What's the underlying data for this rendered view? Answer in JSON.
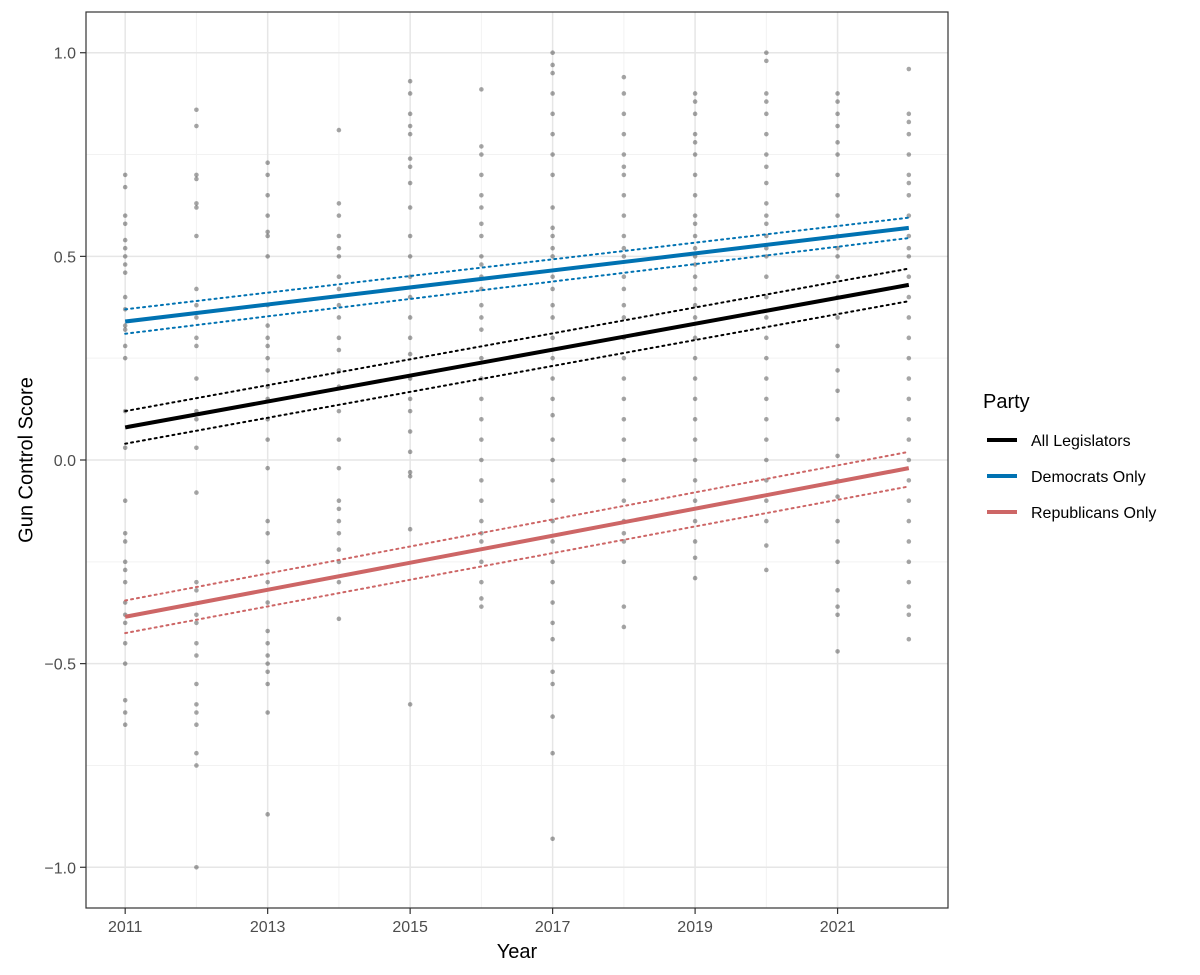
{
  "chart_data": {
    "type": "scatter",
    "xlabel": "Year",
    "ylabel": "Gun Control Score",
    "xlim": [
      2010.45,
      2022.55
    ],
    "ylim": [
      -1.1,
      1.1
    ],
    "x_ticks": [
      2011,
      2013,
      2015,
      2017,
      2019,
      2021
    ],
    "x_tick_labels": [
      "2011",
      "2013",
      "2015",
      "2017",
      "2019",
      "2021"
    ],
    "y_ticks": [
      1.0,
      0.5,
      0.0,
      -0.5,
      -1.0
    ],
    "y_tick_labels": [
      "1.0",
      "0.5",
      "0.0",
      "−0.5",
      "−1.0"
    ],
    "grid": true,
    "legend": {
      "title": "Party",
      "position": "right",
      "entries": [
        "All Legislators",
        "Democrats Only",
        "Republicans Only"
      ]
    },
    "points": [
      {
        "year": 2011,
        "scores": [
          0.7,
          0.67,
          0.6,
          0.58,
          0.54,
          0.52,
          0.5,
          0.48,
          0.46,
          0.4,
          0.37,
          0.33,
          0.32,
          0.28,
          0.25,
          0.12,
          0.03,
          -0.1,
          -0.18,
          -0.2,
          -0.25,
          -0.27,
          -0.3,
          -0.35,
          -0.38,
          -0.4,
          -0.45,
          -0.5,
          -0.59,
          -0.62,
          -0.65
        ]
      },
      {
        "year": 2012,
        "scores": [
          0.86,
          0.82,
          0.7,
          0.69,
          0.63,
          0.62,
          0.55,
          0.42,
          0.38,
          0.35,
          0.3,
          0.28,
          0.2,
          0.12,
          0.1,
          0.03,
          -0.08,
          -0.3,
          -0.32,
          -0.38,
          -0.4,
          -0.45,
          -0.48,
          -0.55,
          -0.6,
          -0.62,
          -0.65,
          -0.72,
          -0.75,
          -1.0
        ]
      },
      {
        "year": 2013,
        "scores": [
          0.73,
          0.7,
          0.65,
          0.6,
          0.56,
          0.55,
          0.5,
          0.38,
          0.33,
          0.3,
          0.28,
          0.25,
          0.22,
          0.18,
          0.15,
          0.1,
          0.05,
          -0.02,
          -0.15,
          -0.18,
          -0.25,
          -0.3,
          -0.35,
          -0.42,
          -0.45,
          -0.48,
          -0.5,
          -0.52,
          -0.55,
          -0.62,
          -0.87
        ]
      },
      {
        "year": 2014,
        "scores": [
          0.81,
          0.63,
          0.6,
          0.55,
          0.52,
          0.5,
          0.45,
          0.42,
          0.38,
          0.35,
          0.3,
          0.27,
          0.22,
          0.18,
          0.12,
          0.05,
          -0.02,
          -0.1,
          -0.12,
          -0.15,
          -0.18,
          -0.22,
          -0.25,
          -0.3,
          -0.39
        ]
      },
      {
        "year": 2015,
        "scores": [
          0.93,
          0.9,
          0.85,
          0.82,
          0.8,
          0.74,
          0.72,
          0.68,
          0.62,
          0.55,
          0.5,
          0.45,
          0.4,
          0.35,
          0.3,
          0.26,
          0.2,
          0.15,
          0.12,
          0.07,
          0.02,
          -0.03,
          -0.04,
          -0.17,
          -0.6
        ]
      },
      {
        "year": 2016,
        "scores": [
          0.91,
          0.77,
          0.75,
          0.7,
          0.65,
          0.62,
          0.58,
          0.55,
          0.5,
          0.48,
          0.45,
          0.42,
          0.38,
          0.35,
          0.32,
          0.25,
          0.2,
          0.15,
          0.1,
          0.05,
          0.0,
          -0.05,
          -0.1,
          -0.15,
          -0.18,
          -0.2,
          -0.25,
          -0.3,
          -0.34,
          -0.36
        ]
      },
      {
        "year": 2017,
        "scores": [
          1.0,
          0.97,
          0.95,
          0.9,
          0.85,
          0.8,
          0.75,
          0.7,
          0.62,
          0.57,
          0.55,
          0.52,
          0.5,
          0.45,
          0.42,
          0.38,
          0.35,
          0.3,
          0.25,
          0.2,
          0.15,
          0.11,
          0.05,
          0.0,
          -0.05,
          -0.1,
          -0.15,
          -0.2,
          -0.25,
          -0.3,
          -0.35,
          -0.4,
          -0.44,
          -0.52,
          -0.55,
          -0.63,
          -0.72,
          -0.93
        ]
      },
      {
        "year": 2018,
        "scores": [
          0.94,
          0.9,
          0.85,
          0.8,
          0.75,
          0.72,
          0.7,
          0.65,
          0.6,
          0.55,
          0.52,
          0.5,
          0.45,
          0.42,
          0.38,
          0.35,
          0.3,
          0.25,
          0.2,
          0.15,
          0.1,
          0.05,
          0.0,
          -0.05,
          -0.1,
          -0.15,
          -0.18,
          -0.2,
          -0.25,
          -0.36,
          -0.41
        ]
      },
      {
        "year": 2019,
        "scores": [
          0.9,
          0.88,
          0.85,
          0.8,
          0.78,
          0.75,
          0.7,
          0.65,
          0.6,
          0.58,
          0.55,
          0.52,
          0.5,
          0.48,
          0.45,
          0.42,
          0.38,
          0.35,
          0.3,
          0.25,
          0.2,
          0.15,
          0.1,
          0.05,
          0.0,
          -0.05,
          -0.1,
          -0.15,
          -0.2,
          -0.24,
          -0.29
        ]
      },
      {
        "year": 2020,
        "scores": [
          1.0,
          0.98,
          0.9,
          0.88,
          0.85,
          0.8,
          0.75,
          0.72,
          0.68,
          0.63,
          0.6,
          0.58,
          0.55,
          0.52,
          0.5,
          0.45,
          0.4,
          0.35,
          0.3,
          0.25,
          0.2,
          0.15,
          0.1,
          0.05,
          0.0,
          -0.05,
          -0.1,
          -0.15,
          -0.21,
          -0.27
        ]
      },
      {
        "year": 2021,
        "scores": [
          0.9,
          0.88,
          0.85,
          0.82,
          0.78,
          0.75,
          0.7,
          0.65,
          0.6,
          0.55,
          0.52,
          0.5,
          0.45,
          0.4,
          0.35,
          0.28,
          0.22,
          0.17,
          0.1,
          0.01,
          -0.05,
          -0.09,
          -0.15,
          -0.2,
          -0.25,
          -0.32,
          -0.36,
          -0.38,
          -0.47
        ]
      },
      {
        "year": 2022,
        "scores": [
          0.96,
          0.85,
          0.83,
          0.8,
          0.75,
          0.7,
          0.68,
          0.65,
          0.6,
          0.55,
          0.52,
          0.5,
          0.45,
          0.4,
          0.35,
          0.3,
          0.25,
          0.2,
          0.15,
          0.1,
          0.05,
          0.0,
          -0.05,
          -0.1,
          -0.15,
          -0.2,
          -0.25,
          -0.3,
          -0.36,
          -0.38,
          -0.44
        ]
      }
    ],
    "series": [
      {
        "name": "All Legislators",
        "color": "#000000",
        "x": [
          2011,
          2022
        ],
        "y": [
          0.08,
          0.43
        ],
        "ci_low": [
          0.04,
          0.39
        ],
        "ci_high": [
          0.12,
          0.47
        ]
      },
      {
        "name": "Democrats Only",
        "color": "#0072b2",
        "x": [
          2011,
          2022
        ],
        "y": [
          0.34,
          0.57
        ],
        "ci_low": [
          0.31,
          0.545
        ],
        "ci_high": [
          0.37,
          0.595
        ]
      },
      {
        "name": "Republicans Only",
        "color": "#cd6666",
        "x": [
          2011,
          2022
        ],
        "y": [
          -0.385,
          -0.02
        ],
        "ci_low": [
          -0.425,
          -0.065
        ],
        "ci_high": [
          -0.345,
          0.02
        ]
      }
    ]
  }
}
